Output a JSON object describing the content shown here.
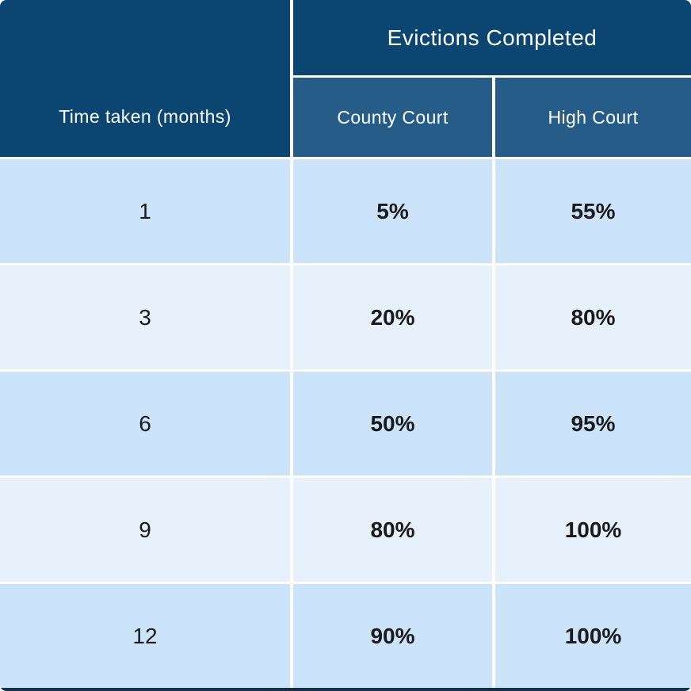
{
  "colors": {
    "header_dark": "#0B4673",
    "header_medium": "#255D88",
    "row_light": "#CBE4FA",
    "row_lighter": "#E6F1FC",
    "divider": "#FFFFFF",
    "bottom_bar": "#15314B",
    "text_dark": "#1A1A1A",
    "text_light": "#FFFFFF"
  },
  "table": {
    "corner_label": "Time taken (months)",
    "group_header": "Evictions Completed",
    "column_headers": [
      "County Court",
      "High Court"
    ],
    "rows": [
      {
        "months": "1",
        "county_court": "5%",
        "high_court": "55%"
      },
      {
        "months": "3",
        "county_court": "20%",
        "high_court": "80%"
      },
      {
        "months": "6",
        "county_court": "50%",
        "high_court": "95%"
      },
      {
        "months": "9",
        "county_court": "80%",
        "high_court": "100%"
      },
      {
        "months": "12",
        "county_court": "90%",
        "high_court": "100%"
      }
    ]
  },
  "chart_data": {
    "type": "table",
    "title": "Evictions Completed",
    "xlabel": "Time taken (months)",
    "categories": [
      1,
      3,
      6,
      9,
      12
    ],
    "series": [
      {
        "name": "County Court",
        "values": [
          5,
          20,
          50,
          80,
          90
        ]
      },
      {
        "name": "High Court",
        "values": [
          55,
          80,
          95,
          100,
          100
        ]
      }
    ],
    "unit": "percent"
  }
}
